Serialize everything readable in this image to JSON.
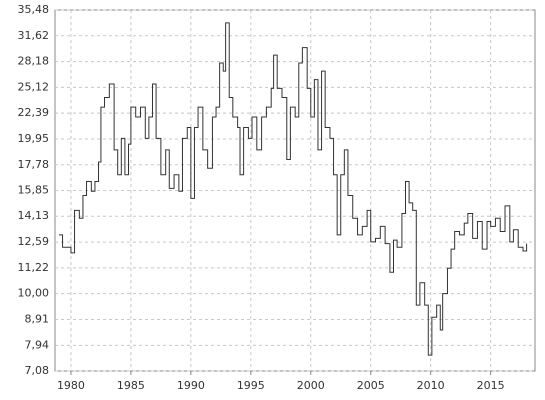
{
  "chart_data": {
    "type": "step-line",
    "log_y": true,
    "grid": true,
    "xlim": [
      1978.67,
      2018.7
    ],
    "xticks": [
      1980,
      1985,
      1990,
      1995,
      2000,
      2005,
      2010,
      2015
    ],
    "ylim": [
      7.08,
      35.48
    ],
    "yticks": [
      {
        "value": 7.08,
        "label": "7,08"
      },
      {
        "value": 7.94,
        "label": "7,94"
      },
      {
        "value": 8.91,
        "label": "8,91"
      },
      {
        "value": 10.0,
        "label": "10,00"
      },
      {
        "value": 11.22,
        "label": "11,22"
      },
      {
        "value": 12.59,
        "label": "12,59"
      },
      {
        "value": 14.13,
        "label": "14,13"
      },
      {
        "value": 15.85,
        "label": "15,85"
      },
      {
        "value": 17.78,
        "label": "17,78"
      },
      {
        "value": 19.95,
        "label": "19,95"
      },
      {
        "value": 22.39,
        "label": "22,39"
      },
      {
        "value": 25.12,
        "label": "25,12"
      },
      {
        "value": 28.18,
        "label": "28,18"
      },
      {
        "value": 31.62,
        "label": "31,62"
      },
      {
        "value": 35.48,
        "label": "35,48"
      }
    ],
    "color": "#333333",
    "x": [
      1979.0,
      1979.3,
      1980.0,
      1980.3,
      1980.7,
      1981.0,
      1981.3,
      1981.7,
      1982.0,
      1982.3,
      1982.5,
      1982.8,
      1983.2,
      1983.6,
      1983.9,
      1984.2,
      1984.5,
      1984.8,
      1985.0,
      1985.4,
      1985.8,
      1986.2,
      1986.5,
      1986.8,
      1987.1,
      1987.5,
      1987.9,
      1988.2,
      1988.6,
      1989.0,
      1989.3,
      1989.7,
      1990.0,
      1990.3,
      1990.6,
      1991.0,
      1991.4,
      1991.8,
      1992.1,
      1992.4,
      1992.7,
      1992.9,
      1993.2,
      1993.5,
      1993.9,
      1994.1,
      1994.4,
      1994.8,
      1995.1,
      1995.5,
      1995.9,
      1996.3,
      1996.7,
      1996.9,
      1997.2,
      1997.6,
      1998.0,
      1998.3,
      1998.7,
      1999.0,
      1999.3,
      1999.7,
      2000.0,
      2000.3,
      2000.6,
      2000.9,
      2001.2,
      2001.6,
      2001.9,
      2002.2,
      2002.5,
      2002.8,
      2003.1,
      2003.5,
      2003.9,
      2004.3,
      2004.7,
      2005.0,
      2005.4,
      2005.8,
      2006.2,
      2006.6,
      2006.9,
      2007.2,
      2007.6,
      2007.9,
      2008.2,
      2008.5,
      2008.8,
      2009.1,
      2009.5,
      2009.8,
      2010.1,
      2010.5,
      2010.8,
      2011.0,
      2011.4,
      2011.7,
      2012.0,
      2012.4,
      2012.8,
      2013.1,
      2013.5,
      2013.9,
      2014.3,
      2014.7,
      2015.0,
      2015.4,
      2015.8,
      2016.2,
      2016.6,
      2016.9,
      2017.3,
      2017.7,
      2018.0
    ],
    "values": [
      13.0,
      12.3,
      12.0,
      14.5,
      14.0,
      15.5,
      16.5,
      15.8,
      16.5,
      18,
      23,
      24,
      25.5,
      19,
      17,
      20,
      17,
      19.5,
      23,
      22,
      23,
      20,
      22,
      25.5,
      20,
      17,
      19,
      16,
      17,
      15.8,
      20,
      21,
      15.3,
      21,
      23,
      19,
      17.5,
      22,
      23,
      28,
      27,
      33.5,
      24,
      22,
      21,
      17,
      21,
      20,
      22,
      19,
      22,
      23,
      25,
      29,
      25,
      24,
      18.2,
      23,
      22,
      28,
      30,
      25,
      22,
      26,
      19,
      27,
      21,
      20,
      17,
      13,
      17,
      19,
      15.5,
      14,
      13,
      13.5,
      14.5,
      12.6,
      12.8,
      13.5,
      12.5,
      11,
      12.7,
      12.3,
      14.3,
      16.5,
      15,
      14.5,
      9.5,
      10.5,
      9.5,
      7.6,
      9,
      9.5,
      8.5,
      10,
      11.2,
      12.2,
      13.2,
      13,
      13.7,
      14.3,
      12.8,
      13.8,
      12.2,
      13.8,
      13.5,
      14,
      13.2,
      14.8,
      12.6,
      13.3,
      12.3,
      12.1,
      12.5
    ]
  }
}
